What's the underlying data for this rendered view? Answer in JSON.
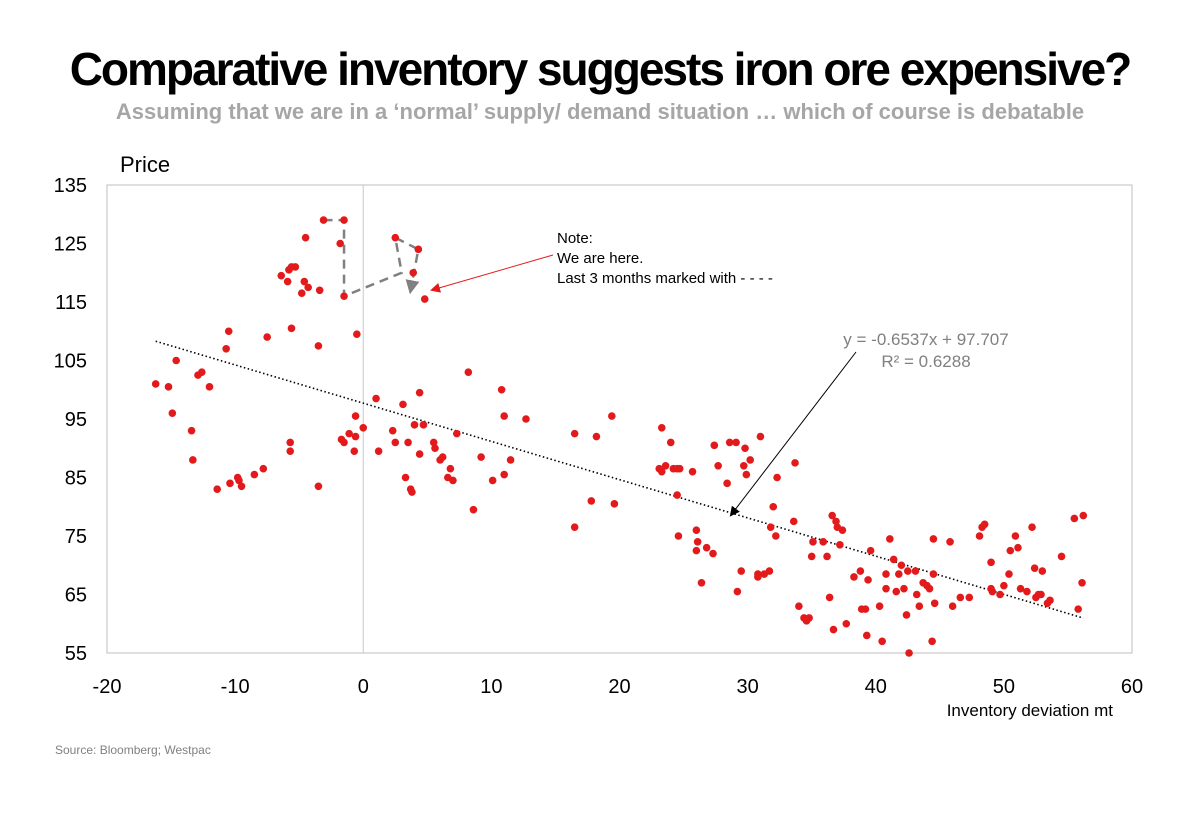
{
  "title": "Comparative inventory suggests iron ore expensive?",
  "subtitle": "Assuming that we are in a ‘normal’ supply/ demand situation … which of course is debatable",
  "source": "Source:  Bloomberg;  Westpac",
  "annotations": {
    "note_lines": [
      "Note:",
      "We are here.",
      "Last 3 months marked with - - - -"
    ],
    "equation": "y = -0.6537x + 97.707",
    "r_squared": "R² = 0.6288"
  },
  "chart_data": {
    "type": "scatter",
    "title": "Comparative inventory suggests iron ore expensive?",
    "ylabel": "Price",
    "xlabel": "Inventory deviation mt",
    "xlim": [
      -20,
      60
    ],
    "ylim": [
      55,
      135
    ],
    "x_ticks": [
      "-20",
      "-10",
      "0",
      "10",
      "20",
      "30",
      "40",
      "50",
      "60"
    ],
    "y_ticks": [
      "135",
      "125",
      "115",
      "105",
      "95",
      "85",
      "75",
      "65",
      "55"
    ],
    "colors": {
      "points": "#e31a1c",
      "trend": "#000000",
      "recent_path": "#808080",
      "note_arrow": "#e31a1c",
      "zero_line": "#c8c8c8"
    },
    "trendline": {
      "slope": -0.6537,
      "intercept": 97.707,
      "x_range": [
        -16.2,
        56.2
      ]
    },
    "recent_path": [
      [
        -3.1,
        129
      ],
      [
        -1.5,
        129
      ],
      [
        -1.5,
        116
      ],
      [
        3.0,
        120
      ],
      [
        2.5,
        126
      ],
      [
        4.3,
        124
      ],
      [
        3.7,
        117
      ]
    ],
    "points": [
      [
        -16.2,
        101
      ],
      [
        -15.2,
        100.5
      ],
      [
        -14.9,
        96
      ],
      [
        -14.6,
        105
      ],
      [
        -13.4,
        93
      ],
      [
        -13.3,
        88
      ],
      [
        -12.9,
        102.5
      ],
      [
        -12.6,
        103
      ],
      [
        -12.0,
        100.5
      ],
      [
        -11.4,
        83
      ],
      [
        -10.7,
        107
      ],
      [
        -10.5,
        110
      ],
      [
        -10.4,
        84
      ],
      [
        -9.8,
        85
      ],
      [
        -9.7,
        84.5
      ],
      [
        -9.5,
        83.5
      ],
      [
        -8.5,
        85.5
      ],
      [
        -7.8,
        86.5
      ],
      [
        -7.5,
        109
      ],
      [
        -6.4,
        119.5
      ],
      [
        -5.9,
        118.5
      ],
      [
        -5.8,
        120.5
      ],
      [
        -5.6,
        121
      ],
      [
        -5.6,
        110.5
      ],
      [
        -5.7,
        91
      ],
      [
        -5.7,
        89.5
      ],
      [
        -5.3,
        121
      ],
      [
        -4.8,
        116.5
      ],
      [
        -4.6,
        118.5
      ],
      [
        -4.5,
        126
      ],
      [
        -4.3,
        117.5
      ],
      [
        -3.5,
        107.5
      ],
      [
        -3.4,
        117
      ],
      [
        -3.5,
        83.5
      ],
      [
        -3.1,
        129
      ],
      [
        -1.8,
        125
      ],
      [
        -1.7,
        91.5
      ],
      [
        -1.5,
        91
      ],
      [
        -1.5,
        129
      ],
      [
        -1.5,
        116
      ],
      [
        -1.1,
        92.5
      ],
      [
        -0.7,
        89.5
      ],
      [
        -0.6,
        92
      ],
      [
        -0.6,
        95.5
      ],
      [
        -0.5,
        109.5
      ],
      [
        0,
        93.5
      ],
      [
        1.0,
        98.5
      ],
      [
        1.2,
        89.5
      ],
      [
        2.3,
        93
      ],
      [
        2.5,
        91
      ],
      [
        2.5,
        126
      ],
      [
        3.1,
        97.5
      ],
      [
        3.3,
        85
      ],
      [
        3.5,
        91
      ],
      [
        3.7,
        83
      ],
      [
        3.8,
        82.5
      ],
      [
        4.0,
        94
      ],
      [
        4.3,
        124
      ],
      [
        4.4,
        89
      ],
      [
        4.4,
        99.5
      ],
      [
        4.7,
        94
      ],
      [
        4.8,
        115.5
      ],
      [
        3.9,
        120
      ],
      [
        5.5,
        91
      ],
      [
        5.6,
        90
      ],
      [
        6.0,
        88
      ],
      [
        6.2,
        88.5
      ],
      [
        6.6,
        85
      ],
      [
        6.8,
        86.5
      ],
      [
        7.0,
        84.5
      ],
      [
        7.3,
        92.5
      ],
      [
        8.2,
        103
      ],
      [
        8.6,
        79.5
      ],
      [
        9.2,
        88.5
      ],
      [
        10.1,
        84.5
      ],
      [
        10.8,
        100
      ],
      [
        11.0,
        95.5
      ],
      [
        11.0,
        85.5
      ],
      [
        11.5,
        88
      ],
      [
        12.7,
        95
      ],
      [
        16.5,
        92.5
      ],
      [
        16.5,
        76.5
      ],
      [
        17.8,
        81
      ],
      [
        18.2,
        92
      ],
      [
        19.4,
        95.5
      ],
      [
        19.6,
        80.5
      ],
      [
        23.1,
        86.5
      ],
      [
        23.3,
        86
      ],
      [
        23.3,
        93.5
      ],
      [
        23.6,
        87
      ],
      [
        24.0,
        91
      ],
      [
        24.2,
        86.5
      ],
      [
        24.5,
        86.5
      ],
      [
        24.5,
        82
      ],
      [
        24.7,
        86.5
      ],
      [
        24.6,
        75
      ],
      [
        25.7,
        86
      ],
      [
        26.0,
        76
      ],
      [
        26.1,
        74
      ],
      [
        26.0,
        72.5
      ],
      [
        26.4,
        67
      ],
      [
        26.8,
        73
      ],
      [
        27.3,
        72
      ],
      [
        27.4,
        90.5
      ],
      [
        27.7,
        87
      ],
      [
        28.4,
        84
      ],
      [
        28.6,
        91
      ],
      [
        29.1,
        91
      ],
      [
        29.2,
        65.5
      ],
      [
        29.5,
        69
      ],
      [
        29.7,
        87
      ],
      [
        29.8,
        90
      ],
      [
        29.9,
        85.5
      ],
      [
        30.2,
        88
      ],
      [
        30.8,
        68.5
      ],
      [
        30.8,
        68
      ],
      [
        31.0,
        92
      ],
      [
        31.3,
        68.5
      ],
      [
        31.7,
        69
      ],
      [
        31.8,
        76.5
      ],
      [
        32.0,
        80
      ],
      [
        32.2,
        75
      ],
      [
        32.3,
        85
      ],
      [
        33.6,
        77.5
      ],
      [
        33.7,
        87.5
      ],
      [
        34.0,
        63
      ],
      [
        34.4,
        61
      ],
      [
        34.6,
        60.5
      ],
      [
        34.8,
        61
      ],
      [
        35.0,
        71.5
      ],
      [
        35.1,
        74
      ],
      [
        35.9,
        74
      ],
      [
        36.2,
        71.5
      ],
      [
        36.6,
        78.5
      ],
      [
        36.7,
        59
      ],
      [
        36.9,
        77.5
      ],
      [
        37.0,
        76.5
      ],
      [
        37.2,
        73.5
      ],
      [
        38.3,
        68
      ],
      [
        38.8,
        69
      ],
      [
        38.9,
        62.5
      ],
      [
        39.2,
        62.5
      ],
      [
        39.3,
        58
      ],
      [
        39.4,
        67.5
      ],
      [
        39.6,
        72.5
      ],
      [
        40.3,
        63
      ],
      [
        40.5,
        57
      ],
      [
        40.8,
        68.5
      ],
      [
        41.1,
        74.5
      ],
      [
        41.4,
        71
      ],
      [
        41.6,
        65.5
      ],
      [
        41.8,
        68.5
      ],
      [
        42.0,
        70
      ],
      [
        42.2,
        66
      ],
      [
        42.4,
        61.5
      ],
      [
        42.5,
        69
      ],
      [
        42.6,
        55
      ],
      [
        37.7,
        60
      ],
      [
        37.4,
        76
      ],
      [
        36.4,
        64.5
      ],
      [
        40.8,
        66
      ],
      [
        43.1,
        69
      ],
      [
        43.2,
        65
      ],
      [
        43.4,
        63
      ],
      [
        43.7,
        67
      ],
      [
        44.0,
        66.5
      ],
      [
        44.2,
        66
      ],
      [
        44.5,
        74.5
      ],
      [
        44.5,
        68.5
      ],
      [
        44.6,
        63.5
      ],
      [
        44.4,
        57
      ],
      [
        45.8,
        74
      ],
      [
        46.0,
        63
      ],
      [
        46.6,
        64.5
      ],
      [
        47.3,
        64.5
      ],
      [
        48.1,
        75
      ],
      [
        48.5,
        77
      ],
      [
        49.0,
        70.5
      ],
      [
        49.0,
        66
      ],
      [
        50.5,
        72.5
      ],
      [
        50.9,
        75
      ],
      [
        51.1,
        73
      ],
      [
        51.3,
        66
      ],
      [
        52.2,
        76.5
      ],
      [
        52.4,
        69.5
      ],
      [
        52.5,
        64.5
      ],
      [
        52.7,
        65
      ],
      [
        53.0,
        69
      ],
      [
        53.4,
        63.5
      ],
      [
        53.6,
        64
      ],
      [
        54.5,
        71.5
      ],
      [
        55.5,
        78
      ],
      [
        55.8,
        62.5
      ],
      [
        56.1,
        67
      ],
      [
        56.2,
        78.5
      ],
      [
        49.7,
        65
      ],
      [
        48.3,
        76.5
      ],
      [
        50.4,
        68.5
      ],
      [
        51.8,
        65.5
      ],
      [
        52.9,
        65
      ],
      [
        50.0,
        66.5
      ],
      [
        49.1,
        65.5
      ]
    ]
  }
}
